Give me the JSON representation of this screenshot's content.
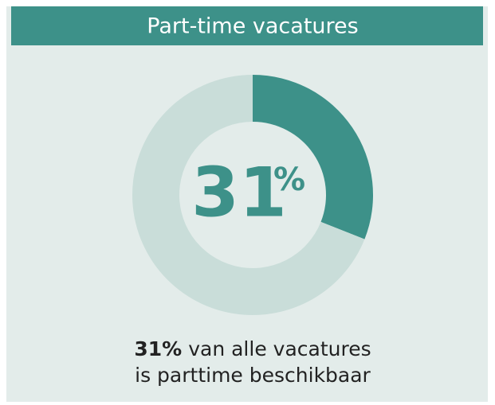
{
  "chart_data": {
    "type": "pie",
    "donut": true,
    "title": "Part-time vacatures",
    "categories": [
      null,
      null
    ],
    "values": [
      31,
      69
    ],
    "value_labels": [
      "31",
      null
    ],
    "center_unit": "%",
    "colors": [
      "#3d9189",
      "#c9ddd9"
    ],
    "caption": {
      "emphasis": "31%",
      "line1": "van alle vacatures",
      "line2": "is parttime beschikbaar"
    }
  }
}
